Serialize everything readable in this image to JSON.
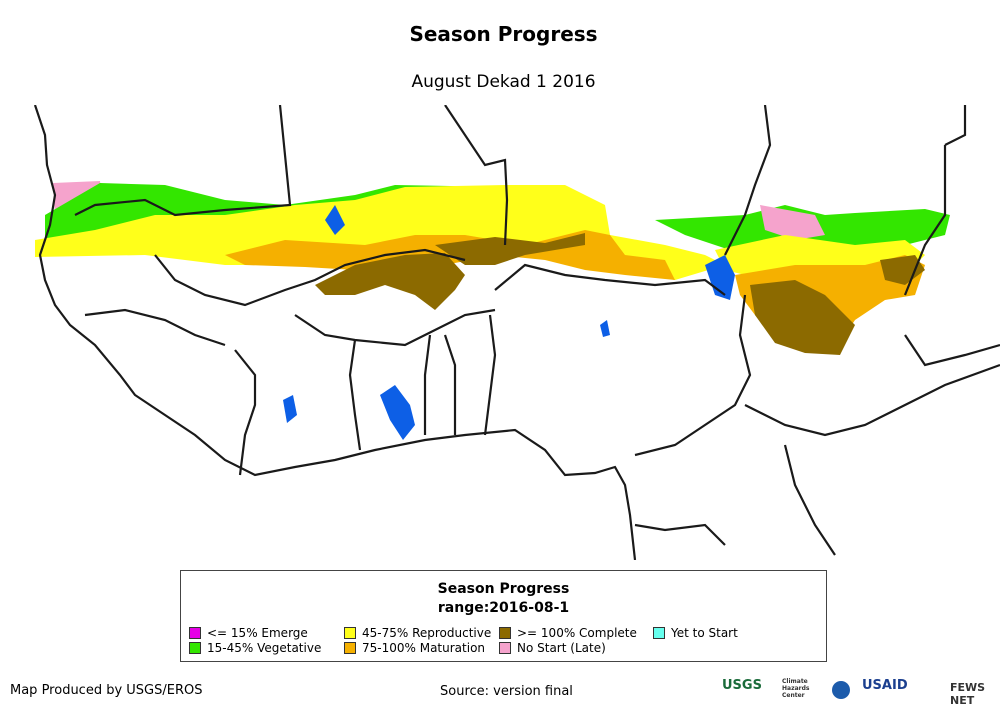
{
  "header": {
    "title": "Season Progress",
    "subtitle": "August Dekad 1 2016"
  },
  "legend": {
    "title": "Season Progress",
    "subtitle": "range:2016-08-1",
    "items": [
      {
        "label": "<= 15% Emerge",
        "color": "#e600e6"
      },
      {
        "label": "15-45% Vegetative",
        "color": "#33e600"
      },
      {
        "label": "45-75% Reproductive",
        "color": "#ffff1a"
      },
      {
        "label": "75-100% Maturation",
        "color": "#f5b000"
      },
      {
        "label": ">= 100% Complete",
        "color": "#8c6a00"
      },
      {
        "label": "No Start (Late)",
        "color": "#f5a3cc"
      },
      {
        "label": "Yet to Start",
        "color": "#66ffee"
      }
    ]
  },
  "map_colors": {
    "water": "#0d5fe6",
    "borders": "#1a1a1a"
  },
  "footer": {
    "producer": "Map Produced by USGS/EROS",
    "source": "Source: version final",
    "logos": [
      "USGS",
      "Climate Hazards Center",
      "NOAA",
      "USAID",
      "FEWS NET"
    ]
  }
}
